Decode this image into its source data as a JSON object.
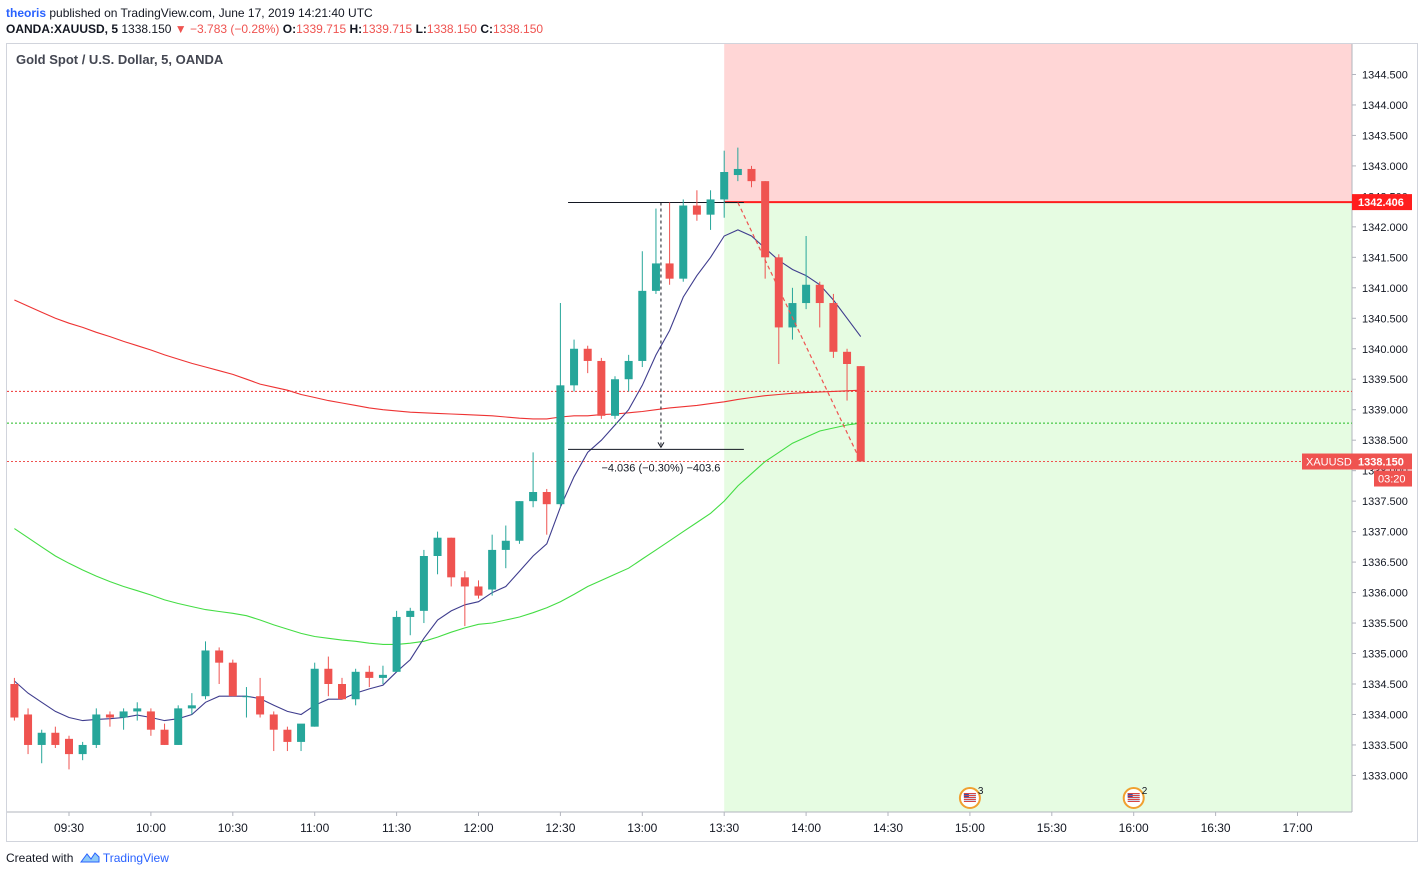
{
  "header": {
    "author": "theoris",
    "published_text": "published on TradingView.com, June 17, 2019 14:21:40 UTC",
    "symbol": "OANDA:XAUUSD, 5",
    "last": "1338.150",
    "change": "−3.783 (−0.28%)",
    "o_label": "O:",
    "o_value": "1339.715",
    "h_label": "H:",
    "h_value": "1339.715",
    "l_label": "L:",
    "l_value": "1338.150",
    "c_label": "C:",
    "c_value": "1338.150"
  },
  "footer": {
    "created_with": "Created with",
    "brand": "TradingView"
  },
  "colors": {
    "up": "#26a69a",
    "down": "#ef5350",
    "ema_fast": "#3f3d8e",
    "ema_slow": "#44dd44",
    "sma_red": "#ee3333",
    "stop_zone": "#ffd6d6",
    "target_zone": "#e6fce2"
  },
  "chart_data": {
    "type": "candlestick",
    "title": "Gold Spot / U.S. Dollar, 5, OANDA",
    "x_ticks": [
      "09:30",
      "10:00",
      "10:30",
      "11:00",
      "11:30",
      "12:00",
      "12:30",
      "13:00",
      "13:30",
      "14:00",
      "14:30",
      "15:00",
      "15:30",
      "16:00",
      "16:30",
      "17:00"
    ],
    "y_ticks": [
      "1333.000",
      "1333.500",
      "1334.000",
      "1334.500",
      "1335.000",
      "1335.500",
      "1336.000",
      "1336.500",
      "1337.000",
      "1337.500",
      "1338.000",
      "1338.500",
      "1339.000",
      "1339.500",
      "1340.000",
      "1340.500",
      "1341.000",
      "1341.500",
      "1342.000",
      "1342.500",
      "1343.000",
      "1343.500",
      "1344.000",
      "1344.500"
    ],
    "ylim": [
      1332.4,
      1345.0
    ],
    "candles": [
      {
        "t": "09:10",
        "o": 1334.5,
        "h": 1334.6,
        "l": 1333.9,
        "c": 1333.95
      },
      {
        "t": "09:15",
        "o": 1334.0,
        "h": 1334.1,
        "l": 1333.35,
        "c": 1333.5
      },
      {
        "t": "09:20",
        "o": 1333.5,
        "h": 1333.75,
        "l": 1333.2,
        "c": 1333.7
      },
      {
        "t": "09:25",
        "o": 1333.7,
        "h": 1333.8,
        "l": 1333.45,
        "c": 1333.5
      },
      {
        "t": "09:30",
        "o": 1333.6,
        "h": 1333.65,
        "l": 1333.1,
        "c": 1333.35
      },
      {
        "t": "09:35",
        "o": 1333.35,
        "h": 1333.55,
        "l": 1333.25,
        "c": 1333.5
      },
      {
        "t": "09:40",
        "o": 1333.5,
        "h": 1334.1,
        "l": 1333.45,
        "c": 1334.0
      },
      {
        "t": "09:45",
        "o": 1334.0,
        "h": 1334.05,
        "l": 1333.8,
        "c": 1333.95
      },
      {
        "t": "09:50",
        "o": 1333.95,
        "h": 1334.1,
        "l": 1333.75,
        "c": 1334.05
      },
      {
        "t": "09:55",
        "o": 1334.05,
        "h": 1334.2,
        "l": 1333.9,
        "c": 1334.1
      },
      {
        "t": "10:00",
        "o": 1334.05,
        "h": 1334.1,
        "l": 1333.65,
        "c": 1333.75
      },
      {
        "t": "10:05",
        "o": 1333.75,
        "h": 1333.85,
        "l": 1333.5,
        "c": 1333.5
      },
      {
        "t": "10:10",
        "o": 1333.5,
        "h": 1334.15,
        "l": 1333.5,
        "c": 1334.1
      },
      {
        "t": "10:15",
        "o": 1334.1,
        "h": 1334.35,
        "l": 1334.0,
        "c": 1334.15
      },
      {
        "t": "10:20",
        "o": 1334.3,
        "h": 1335.2,
        "l": 1334.25,
        "c": 1335.05
      },
      {
        "t": "10:25",
        "o": 1335.05,
        "h": 1335.1,
        "l": 1334.5,
        "c": 1334.85
      },
      {
        "t": "10:30",
        "o": 1334.85,
        "h": 1334.9,
        "l": 1334.3,
        "c": 1334.3
      },
      {
        "t": "10:35",
        "o": 1334.3,
        "h": 1334.45,
        "l": 1333.95,
        "c": 1334.3
      },
      {
        "t": "10:40",
        "o": 1334.3,
        "h": 1334.6,
        "l": 1333.95,
        "c": 1334.0
      },
      {
        "t": "10:45",
        "o": 1334.0,
        "h": 1334.05,
        "l": 1333.4,
        "c": 1333.75
      },
      {
        "t": "10:50",
        "o": 1333.75,
        "h": 1333.8,
        "l": 1333.4,
        "c": 1333.55
      },
      {
        "t": "10:55",
        "o": 1333.55,
        "h": 1333.8,
        "l": 1333.4,
        "c": 1333.85
      },
      {
        "t": "11:00",
        "o": 1333.8,
        "h": 1334.85,
        "l": 1333.8,
        "c": 1334.75
      },
      {
        "t": "11:05",
        "o": 1334.75,
        "h": 1334.95,
        "l": 1334.3,
        "c": 1334.5
      },
      {
        "t": "11:10",
        "o": 1334.5,
        "h": 1334.6,
        "l": 1334.25,
        "c": 1334.25
      },
      {
        "t": "11:15",
        "o": 1334.25,
        "h": 1334.75,
        "l": 1334.15,
        "c": 1334.7
      },
      {
        "t": "11:20",
        "o": 1334.7,
        "h": 1334.8,
        "l": 1334.45,
        "c": 1334.6
      },
      {
        "t": "11:25",
        "o": 1334.6,
        "h": 1334.8,
        "l": 1334.5,
        "c": 1334.65
      },
      {
        "t": "11:30",
        "o": 1334.7,
        "h": 1335.7,
        "l": 1334.7,
        "c": 1335.6
      },
      {
        "t": "11:35",
        "o": 1335.6,
        "h": 1335.75,
        "l": 1335.3,
        "c": 1335.7
      },
      {
        "t": "11:40",
        "o": 1335.7,
        "h": 1336.7,
        "l": 1335.5,
        "c": 1336.6
      },
      {
        "t": "11:45",
        "o": 1336.6,
        "h": 1337.0,
        "l": 1336.3,
        "c": 1336.9
      },
      {
        "t": "11:50",
        "o": 1336.9,
        "h": 1336.9,
        "l": 1336.1,
        "c": 1336.25
      },
      {
        "t": "11:55",
        "o": 1336.25,
        "h": 1336.35,
        "l": 1335.45,
        "c": 1336.1
      },
      {
        "t": "12:00",
        "o": 1336.1,
        "h": 1336.2,
        "l": 1335.9,
        "c": 1335.95
      },
      {
        "t": "12:05",
        "o": 1336.05,
        "h": 1336.95,
        "l": 1335.95,
        "c": 1336.7
      },
      {
        "t": "12:10",
        "o": 1336.7,
        "h": 1337.1,
        "l": 1336.4,
        "c": 1336.85
      },
      {
        "t": "12:15",
        "o": 1336.85,
        "h": 1337.5,
        "l": 1336.8,
        "c": 1337.5
      },
      {
        "t": "12:20",
        "o": 1337.5,
        "h": 1338.3,
        "l": 1337.4,
        "c": 1337.65
      },
      {
        "t": "12:25",
        "o": 1337.65,
        "h": 1337.7,
        "l": 1336.95,
        "c": 1337.45
      },
      {
        "t": "12:30",
        "o": 1337.45,
        "h": 1340.75,
        "l": 1337.4,
        "c": 1339.4
      },
      {
        "t": "12:35",
        "o": 1339.4,
        "h": 1340.15,
        "l": 1339.3,
        "c": 1340.0
      },
      {
        "t": "12:40",
        "o": 1340.0,
        "h": 1340.05,
        "l": 1339.6,
        "c": 1339.8
      },
      {
        "t": "12:45",
        "o": 1339.8,
        "h": 1339.85,
        "l": 1338.85,
        "c": 1338.9
      },
      {
        "t": "12:50",
        "o": 1338.9,
        "h": 1339.55,
        "l": 1338.85,
        "c": 1339.5
      },
      {
        "t": "12:55",
        "o": 1339.5,
        "h": 1339.9,
        "l": 1339.3,
        "c": 1339.8
      },
      {
        "t": "13:00",
        "o": 1339.8,
        "h": 1341.6,
        "l": 1339.7,
        "c": 1340.95
      },
      {
        "t": "13:05",
        "o": 1340.95,
        "h": 1342.3,
        "l": 1340.9,
        "c": 1341.4
      },
      {
        "t": "13:10",
        "o": 1341.4,
        "h": 1342.4,
        "l": 1341.05,
        "c": 1341.15
      },
      {
        "t": "13:15",
        "o": 1341.15,
        "h": 1342.45,
        "l": 1341.1,
        "c": 1342.35
      },
      {
        "t": "13:20",
        "o": 1342.35,
        "h": 1342.6,
        "l": 1342.1,
        "c": 1342.2
      },
      {
        "t": "13:25",
        "o": 1342.2,
        "h": 1342.6,
        "l": 1341.95,
        "c": 1342.45
      },
      {
        "t": "13:30",
        "o": 1342.45,
        "h": 1343.25,
        "l": 1342.15,
        "c": 1342.9
      },
      {
        "t": "13:35",
        "o": 1342.85,
        "h": 1343.3,
        "l": 1342.75,
        "c": 1342.95
      },
      {
        "t": "13:40",
        "o": 1342.95,
        "h": 1343.0,
        "l": 1342.65,
        "c": 1342.75
      },
      {
        "t": "13:45",
        "o": 1342.75,
        "h": 1342.75,
        "l": 1341.15,
        "c": 1341.5
      },
      {
        "t": "13:50",
        "o": 1341.5,
        "h": 1341.55,
        "l": 1339.75,
        "c": 1340.35
      },
      {
        "t": "13:55",
        "o": 1340.35,
        "h": 1341.0,
        "l": 1340.15,
        "c": 1340.75
      },
      {
        "t": "14:00",
        "o": 1340.75,
        "h": 1341.85,
        "l": 1340.65,
        "c": 1341.05
      },
      {
        "t": "14:05",
        "o": 1341.05,
        "h": 1341.1,
        "l": 1340.35,
        "c": 1340.75
      },
      {
        "t": "14:10",
        "o": 1340.75,
        "h": 1340.9,
        "l": 1339.85,
        "c": 1339.95
      },
      {
        "t": "14:15",
        "o": 1339.95,
        "h": 1340.0,
        "l": 1339.15,
        "c": 1339.75
      },
      {
        "t": "14:20",
        "o": 1339.715,
        "h": 1339.715,
        "l": 1338.15,
        "c": 1338.15
      }
    ],
    "ema_fast": [
      1334.55,
      1334.35,
      1334.2,
      1334.05,
      1333.95,
      1333.9,
      1333.92,
      1333.93,
      1333.95,
      1333.99,
      1333.95,
      1333.9,
      1333.93,
      1334.0,
      1334.2,
      1334.3,
      1334.3,
      1334.3,
      1334.26,
      1334.15,
      1334.05,
      1334.0,
      1334.15,
      1334.25,
      1334.25,
      1334.35,
      1334.42,
      1334.48,
      1334.7,
      1334.9,
      1335.25,
      1335.55,
      1335.7,
      1335.8,
      1335.85,
      1336.0,
      1336.1,
      1336.35,
      1336.6,
      1336.8,
      1337.4,
      1337.9,
      1338.3,
      1338.5,
      1338.75,
      1339.0,
      1339.4,
      1339.9,
      1340.3,
      1340.85,
      1341.2,
      1341.5,
      1341.85,
      1341.95,
      1341.85,
      1341.65,
      1341.45,
      1341.3,
      1341.2,
      1341.05,
      1340.8,
      1340.5,
      1340.2
    ],
    "sma_red": [
      1340.8,
      1340.7,
      1340.6,
      1340.5,
      1340.42,
      1340.35,
      1340.27,
      1340.2,
      1340.12,
      1340.05,
      1339.98,
      1339.9,
      1339.83,
      1339.76,
      1339.7,
      1339.64,
      1339.58,
      1339.5,
      1339.42,
      1339.37,
      1339.32,
      1339.25,
      1339.2,
      1339.15,
      1339.11,
      1339.07,
      1339.03,
      1339.0,
      1338.98,
      1338.96,
      1338.95,
      1338.94,
      1338.93,
      1338.92,
      1338.91,
      1338.9,
      1338.88,
      1338.86,
      1338.85,
      1338.85,
      1338.88,
      1338.9,
      1338.9,
      1338.92,
      1338.93,
      1338.95,
      1338.97,
      1339.0,
      1339.03,
      1339.05,
      1339.07,
      1339.1,
      1339.13,
      1339.17,
      1339.2,
      1339.23,
      1339.25,
      1339.27,
      1339.28,
      1339.29,
      1339.3,
      1339.31,
      1339.32
    ],
    "ema_slow": [
      1337.05,
      1336.9,
      1336.75,
      1336.6,
      1336.48,
      1336.37,
      1336.27,
      1336.18,
      1336.1,
      1336.03,
      1335.96,
      1335.88,
      1335.82,
      1335.77,
      1335.72,
      1335.69,
      1335.66,
      1335.62,
      1335.55,
      1335.47,
      1335.4,
      1335.33,
      1335.28,
      1335.25,
      1335.22,
      1335.2,
      1335.17,
      1335.15,
      1335.15,
      1335.17,
      1335.2,
      1335.27,
      1335.35,
      1335.42,
      1335.48,
      1335.5,
      1335.55,
      1335.6,
      1335.67,
      1335.75,
      1335.85,
      1335.97,
      1336.1,
      1336.2,
      1336.3,
      1336.4,
      1336.55,
      1336.7,
      1336.85,
      1337.0,
      1337.15,
      1337.3,
      1337.5,
      1337.75,
      1337.95,
      1338.15,
      1338.3,
      1338.45,
      1338.55,
      1338.65,
      1338.7,
      1338.75,
      1338.78
    ],
    "levels": {
      "stop": 1342.406,
      "stop_label": "1342.406",
      "entry_dotted_red": 1339.3,
      "entry_dotted_green": 1338.78,
      "last_price": 1338.15,
      "last_symbol": "XAUUSD",
      "last_label": "1338.150",
      "countdown": "03:20"
    },
    "position_tool": {
      "type": "short",
      "start_time": "13:30",
      "entry": 1342.406,
      "stop_top": 1345.0,
      "target_bottom": 1332.4
    },
    "measure": {
      "from_time": "12:35",
      "to_time": "13:35",
      "high": 1342.4,
      "low": 1338.35,
      "label": "−4.036 (−0.30%) −403.6"
    },
    "trend_dash": {
      "from_time": "13:35",
      "from_price": 1342.4,
      "to_time": "14:20",
      "to_price": 1338.15
    },
    "events": [
      {
        "time": "15:00",
        "count": "3"
      },
      {
        "time": "16:00",
        "count": "2"
      }
    ]
  }
}
